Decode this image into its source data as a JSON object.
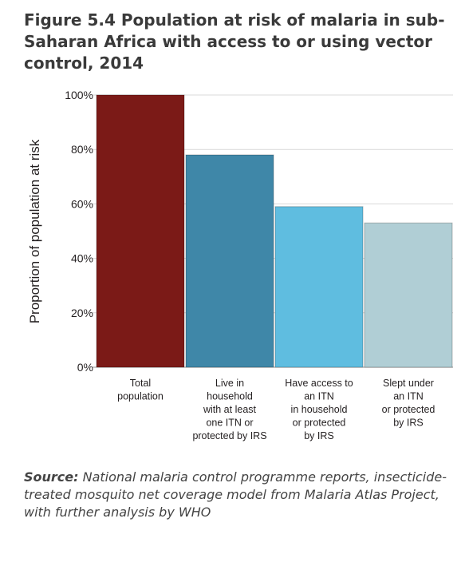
{
  "figure": {
    "title": "Figure 5.4 Population at risk of malaria in sub-Saharan Africa with access to or using vector control, 2014",
    "source_label": "Source:",
    "source_text": "National malaria control programme reports, insecticide-treated mosquito net coverage model from Malaria Atlas Project, with further analysis by WHO"
  },
  "chart_data": {
    "type": "bar",
    "title": "Figure 5.4 Population at risk of malaria in sub-Saharan Africa with access to or using vector control, 2014",
    "xlabel": "",
    "ylabel": "Proportion of population at risk",
    "ylim": [
      0,
      100
    ],
    "yticks": [
      "0%",
      "20%",
      "40%",
      "60%",
      "80%",
      "100%"
    ],
    "grid": true,
    "categories": [
      [
        "Total",
        "population"
      ],
      [
        "Live in",
        "household",
        "with at least",
        "one ITN or",
        "protected by IRS"
      ],
      [
        "Have access to",
        "an ITN",
        "in household",
        "or protected",
        "by IRS"
      ],
      [
        "Slept under",
        "an ITN",
        "or protected",
        "by IRS"
      ]
    ],
    "values": [
      100,
      78,
      59,
      53
    ],
    "colors": [
      "#7b1a17",
      "#3f87a8",
      "#5fbde0",
      "#b0ced5"
    ]
  }
}
